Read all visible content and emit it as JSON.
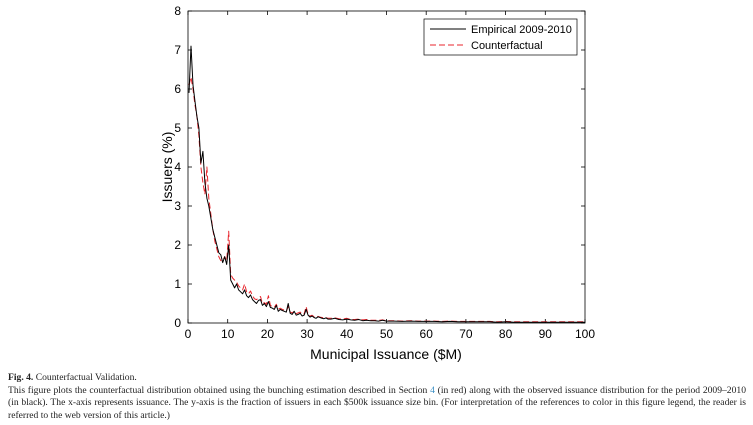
{
  "chart_data": {
    "type": "line",
    "xlabel": "Municipal Issuance ($M)",
    "ylabel": "Issuers (%)",
    "xlim": [
      0,
      100
    ],
    "ylim": [
      0,
      8
    ],
    "xticks": [
      0,
      10,
      20,
      30,
      40,
      50,
      60,
      70,
      80,
      90,
      100
    ],
    "yticks": [
      0,
      1,
      2,
      3,
      4,
      5,
      6,
      7,
      8
    ],
    "grid": false,
    "legend": "top-right",
    "series": [
      {
        "name": "Empirical 2009-2010",
        "color": "#000000",
        "style": "solid",
        "x": [
          0.25,
          0.75,
          1.25,
          1.75,
          2.25,
          2.75,
          3.25,
          3.75,
          4.25,
          4.75,
          5.25,
          5.75,
          6.25,
          6.75,
          7.25,
          7.75,
          8.25,
          8.75,
          9.25,
          9.75,
          10.25,
          10.75,
          11.25,
          11.75,
          12.25,
          12.75,
          13.25,
          13.75,
          14.25,
          14.75,
          15.25,
          15.75,
          16.25,
          16.75,
          17.25,
          17.75,
          18.25,
          18.75,
          19.25,
          19.75,
          20.25,
          20.75,
          21.25,
          21.75,
          22.25,
          22.75,
          23.25,
          23.75,
          24.25,
          24.75,
          25.25,
          25.75,
          26.25,
          26.75,
          27.25,
          27.75,
          28.25,
          28.75,
          29.25,
          29.75,
          30.25,
          30.75,
          31.25,
          31.75,
          32.25,
          32.75,
          33.25,
          33.75,
          34.25,
          34.75,
          35.25,
          36,
          37,
          38,
          39,
          40,
          41,
          42,
          43,
          44,
          45,
          46,
          47,
          48,
          49,
          50,
          52,
          54,
          56,
          58,
          60,
          62,
          64,
          66,
          68,
          70,
          72,
          74,
          76,
          78,
          80,
          82,
          84,
          86,
          88,
          90,
          92,
          94,
          96,
          98,
          100
        ],
        "y": [
          5.9,
          7.1,
          6.1,
          5.7,
          5.3,
          5.0,
          4.1,
          4.4,
          3.6,
          3.2,
          3.0,
          2.7,
          2.4,
          2.2,
          2.0,
          1.8,
          1.75,
          1.55,
          1.7,
          1.5,
          2.0,
          1.1,
          1.0,
          0.9,
          1.0,
          0.85,
          0.8,
          0.75,
          0.85,
          0.7,
          0.65,
          0.72,
          0.6,
          0.55,
          0.5,
          0.58,
          0.6,
          0.45,
          0.5,
          0.42,
          0.55,
          0.4,
          0.38,
          0.35,
          0.45,
          0.3,
          0.35,
          0.32,
          0.3,
          0.28,
          0.5,
          0.25,
          0.22,
          0.3,
          0.2,
          0.22,
          0.25,
          0.18,
          0.2,
          0.35,
          0.2,
          0.15,
          0.18,
          0.14,
          0.12,
          0.16,
          0.14,
          0.12,
          0.11,
          0.13,
          0.1,
          0.1,
          0.12,
          0.09,
          0.08,
          0.1,
          0.08,
          0.07,
          0.09,
          0.06,
          0.07,
          0.06,
          0.06,
          0.05,
          0.07,
          0.05,
          0.05,
          0.04,
          0.05,
          0.04,
          0.04,
          0.04,
          0.03,
          0.04,
          0.03,
          0.03,
          0.03,
          0.03,
          0.03,
          0.02,
          0.03,
          0.02,
          0.02,
          0.02,
          0.02,
          0.02,
          0.02,
          0.02,
          0.02,
          0.02,
          0.02
        ]
      },
      {
        "name": "Counterfactual",
        "color": "#e8262d",
        "style": "dashed",
        "x": [
          0.25,
          0.75,
          1.25,
          1.75,
          2.25,
          2.75,
          3.25,
          3.75,
          4.25,
          4.75,
          5.25,
          5.75,
          6.25,
          6.75,
          7.25,
          7.75,
          8.25,
          8.75,
          9.25,
          9.75,
          10.25,
          10.75,
          11.25,
          11.75,
          12.25,
          12.75,
          13.25,
          13.75,
          14.25,
          14.75,
          15.25,
          15.75,
          16.25,
          16.75,
          17.25,
          17.75,
          18.25,
          18.75,
          19.25,
          19.75,
          20.25,
          20.75,
          21.25,
          21.75,
          22.25,
          22.75,
          23.25,
          23.75,
          24.25,
          24.75,
          25.25,
          25.75,
          26.25,
          26.75,
          27.25,
          27.75,
          28.25,
          28.75,
          29.25,
          29.75,
          30.25,
          30.75,
          31.25,
          31.75,
          32.25,
          32.75,
          33.25,
          33.75,
          34.25,
          34.75,
          35.25,
          36,
          37,
          38,
          39,
          40,
          41,
          42,
          43,
          44,
          45,
          46,
          47,
          48,
          49,
          50,
          52,
          54,
          56,
          58,
          60,
          62,
          64,
          66,
          68,
          70,
          72,
          74,
          76,
          78,
          80,
          82,
          84,
          86,
          88,
          90,
          92,
          94,
          96,
          98,
          100
        ],
        "y": [
          6.1,
          6.3,
          6.0,
          5.6,
          5.3,
          4.8,
          4.0,
          3.6,
          3.3,
          4.0,
          3.2,
          2.8,
          2.4,
          2.1,
          1.9,
          1.7,
          1.6,
          1.6,
          1.7,
          1.6,
          2.35,
          1.25,
          1.15,
          1.1,
          1.05,
          0.95,
          0.9,
          0.85,
          1.0,
          0.8,
          0.75,
          0.82,
          0.7,
          0.62,
          0.6,
          0.64,
          0.68,
          0.5,
          0.52,
          0.48,
          0.7,
          0.45,
          0.42,
          0.4,
          0.48,
          0.36,
          0.38,
          0.35,
          0.33,
          0.3,
          0.42,
          0.28,
          0.26,
          0.3,
          0.24,
          0.26,
          0.28,
          0.22,
          0.23,
          0.42,
          0.22,
          0.18,
          0.2,
          0.16,
          0.15,
          0.17,
          0.15,
          0.14,
          0.13,
          0.14,
          0.12,
          0.12,
          0.13,
          0.11,
          0.1,
          0.12,
          0.09,
          0.09,
          0.1,
          0.08,
          0.09,
          0.07,
          0.07,
          0.07,
          0.08,
          0.06,
          0.06,
          0.05,
          0.06,
          0.05,
          0.05,
          0.05,
          0.04,
          0.05,
          0.04,
          0.04,
          0.04,
          0.04,
          0.04,
          0.03,
          0.04,
          0.03,
          0.03,
          0.03,
          0.03,
          0.03,
          0.03,
          0.03,
          0.03,
          0.03,
          0.03
        ]
      }
    ]
  },
  "caption": {
    "fig_label": "Fig. 4.",
    "fig_title": "Counterfactual Validation.",
    "text_before_ref": "This figure plots the counterfactual distribution obtained using the bunching estimation described in Section ",
    "ref": "4",
    "text_after_ref": " (in red) along with the observed issuance distribution for the period 2009–2010 (in black). The x-axis represents issuance. The y-axis is the fraction of issuers in each $500k issuance size bin. (For interpretation of the references to color in this figure legend, the reader is referred to the web version of this article.)"
  }
}
